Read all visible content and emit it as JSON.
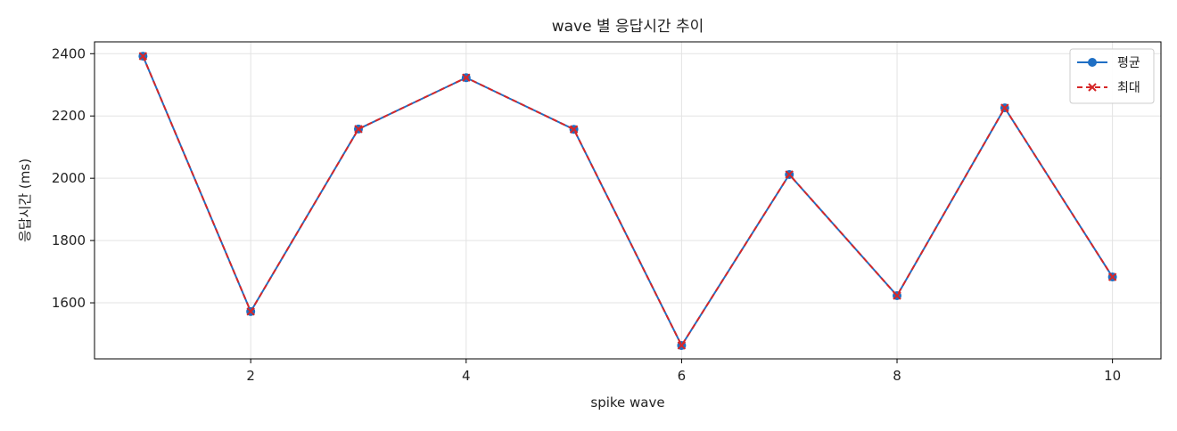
{
  "chart_data": {
    "type": "line",
    "title": "wave 별 응답시간 추이",
    "xlabel": "spike wave",
    "ylabel": "응답시간 (ms)",
    "x": [
      1,
      2,
      3,
      4,
      5,
      6,
      7,
      8,
      9,
      10
    ],
    "xlim": [
      0.55,
      10.45
    ],
    "ylim": [
      1420,
      2438
    ],
    "xticks": [
      2,
      4,
      6,
      8,
      10
    ],
    "yticks": [
      1600,
      1800,
      2000,
      2200,
      2400
    ],
    "grid": true,
    "legend_position": "top-right",
    "series": [
      {
        "name": "평균",
        "values": [
          2392,
          1572,
          2158,
          2323,
          2157,
          1463,
          2012,
          1623,
          2226,
          1683
        ],
        "color": "#1f6fc4",
        "marker": "circle",
        "linestyle": "solid"
      },
      {
        "name": "최대",
        "values": [
          2392,
          1572,
          2158,
          2323,
          2157,
          1463,
          2012,
          1623,
          2226,
          1683
        ],
        "color": "#d62728",
        "marker": "x",
        "linestyle": "dashed"
      }
    ]
  }
}
